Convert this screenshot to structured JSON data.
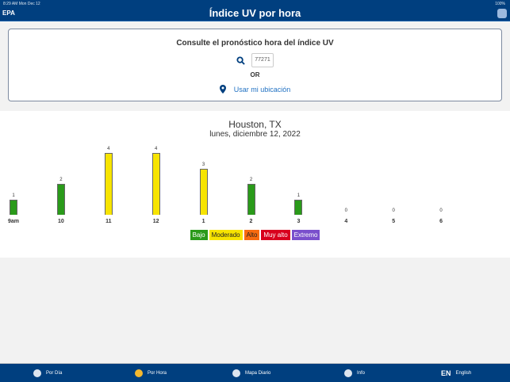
{
  "status": {
    "time": "8:29 AM  Mon Dec 12",
    "battery": "100%"
  },
  "header": {
    "logo": "EPA",
    "title": "Índice UV por hora"
  },
  "search": {
    "heading": "Consulte el pronóstico hora del índice UV",
    "zip": "77271",
    "or": "OR",
    "location": "Usar mi ubicación"
  },
  "forecast": {
    "city": "Houston, TX",
    "date": "lunes, diciembre 12, 2022"
  },
  "chart_data": {
    "type": "bar",
    "categories": [
      "9am",
      "10",
      "11",
      "12",
      "1",
      "2",
      "3",
      "4",
      "5",
      "6"
    ],
    "values": [
      1,
      2,
      4,
      4,
      3,
      2,
      1,
      0,
      0,
      0
    ],
    "ylim": [
      0,
      4
    ]
  },
  "legend": [
    {
      "label": "Bajo",
      "color": "#2a9a1a",
      "text": "#fff"
    },
    {
      "label": "Moderado",
      "color": "#f7e400",
      "text": "#222"
    },
    {
      "label": "Alto",
      "color": "#f86a10",
      "text": "#222"
    },
    {
      "label": "Muy alto",
      "color": "#d8001d",
      "text": "#fff"
    },
    {
      "label": "Extremo",
      "color": "#7a4fcc",
      "text": "#fff"
    }
  ],
  "tabs": [
    {
      "label": "Por Día",
      "icon": "gear-sun-icon"
    },
    {
      "label": "Por Hora",
      "icon": "clock-icon"
    },
    {
      "label": "Mapa Diario",
      "icon": "globe-icon"
    },
    {
      "label": "Info",
      "icon": "info-icon"
    },
    {
      "label": "English",
      "icon": "EN"
    }
  ]
}
